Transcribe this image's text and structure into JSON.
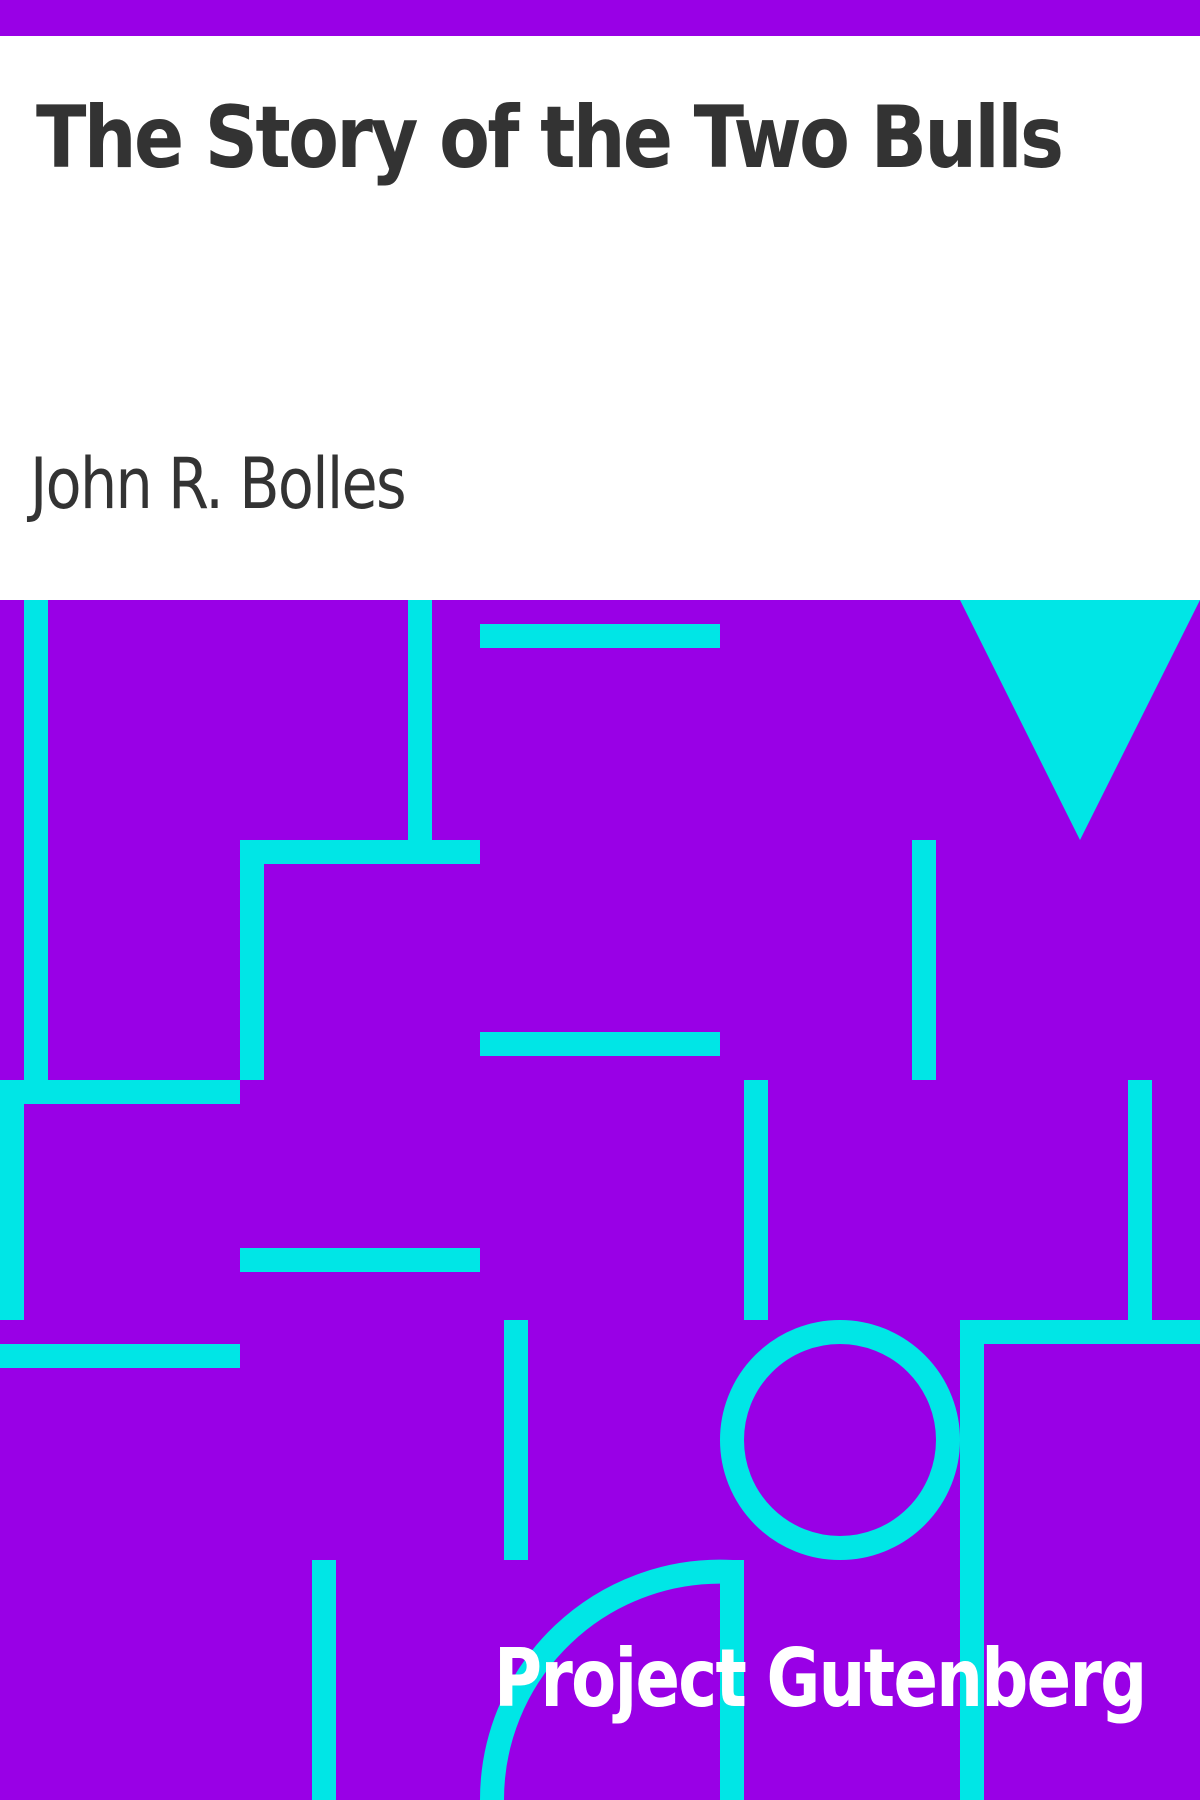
{
  "cover": {
    "title": "The Story of the Two Bulls",
    "author": "John R. Bolles",
    "publisher": "Project Gutenberg"
  },
  "colors": {
    "background": "#9900e6",
    "pattern": "#00e6e6",
    "header_background": "#ffffff",
    "text": "#333333",
    "publisher_text": "#ffffff"
  }
}
